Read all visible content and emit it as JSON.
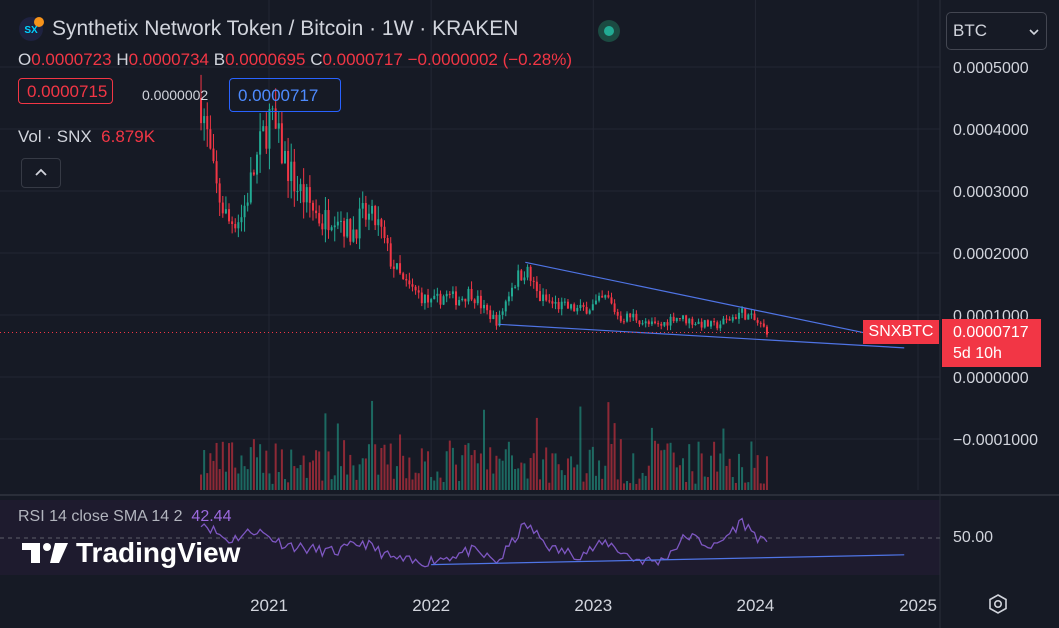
{
  "header": {
    "title": "Synthetix Network Token / Bitcoin · 1W · KRAKEN",
    "ohlc": {
      "o_label": "O",
      "o": "0.0000723",
      "h_label": "H",
      "h": "0.0000734",
      "b_label": "B",
      "b": "0.0000695",
      "c_label": "C",
      "c": "0.0000717",
      "change": "−0.0000002 (−0.28%)"
    },
    "bid": "0.0000715",
    "spread": "0.0000002",
    "ask": "0.0000717",
    "volume_label": "Vol · SNX",
    "volume_value": "6.879K"
  },
  "currency_select": {
    "value": "BTC"
  },
  "price_tag": {
    "symbol": "SNXBTC",
    "price": "0.0000717",
    "countdown": "5d 10h"
  },
  "rsi": {
    "label": "RSI 14 close SMA 14 2",
    "value": "42.44",
    "axis_label": "50.00"
  },
  "brand": "TradingView",
  "colors": {
    "up": "#22ab94",
    "down": "#f23645",
    "trend": "#4f74e5",
    "rsi": "#7e57c2",
    "accent": "#2962ff"
  },
  "chart_data": {
    "type": "candlestick",
    "title": "Synthetix Network Token / Bitcoin · 1W · KRAKEN",
    "x_ticks": [
      "2021",
      "2022",
      "2023",
      "2024",
      "2025"
    ],
    "y_ticks": [
      "0.0005000",
      "0.0004000",
      "0.0003000",
      "0.0002000",
      "0.0001000",
      "0.0000000",
      "−0.0001000"
    ],
    "ylim": [
      -0.00018,
      0.00053
    ],
    "price_path": [
      [
        "2020-08-01",
        0.00045
      ],
      [
        "2020-09-01",
        0.00031
      ],
      [
        "2020-10-01",
        0.00025
      ],
      [
        "2020-11-01",
        0.00026
      ],
      [
        "2020-12-01",
        0.00034
      ],
      [
        "2021-01-01",
        0.00042
      ],
      [
        "2021-02-01",
        0.00036
      ],
      [
        "2021-03-01",
        0.00031
      ],
      [
        "2021-04-01",
        0.00028
      ],
      [
        "2021-05-01",
        0.00025
      ],
      [
        "2021-06-01",
        0.00027
      ],
      [
        "2021-07-01",
        0.00023
      ],
      [
        "2021-08-01",
        0.00026
      ],
      [
        "2021-09-01",
        0.00025
      ],
      [
        "2021-10-01",
        0.00019
      ],
      [
        "2021-11-01",
        0.00015
      ],
      [
        "2021-12-01",
        0.000135
      ],
      [
        "2022-01-01",
        0.000118
      ],
      [
        "2022-02-01",
        0.000132
      ],
      [
        "2022-03-01",
        0.000125
      ],
      [
        "2022-04-01",
        0.000138
      ],
      [
        "2022-05-01",
        0.000108
      ],
      [
        "2022-06-01",
        8.8e-05
      ],
      [
        "2022-07-01",
        0.000148
      ],
      [
        "2022-08-01",
        0.000175
      ],
      [
        "2022-09-01",
        0.000128
      ],
      [
        "2022-10-01",
        0.000118
      ],
      [
        "2022-11-01",
        0.000112
      ],
      [
        "2022-12-01",
        0.000108
      ],
      [
        "2023-01-01",
        0.000115
      ],
      [
        "2023-02-01",
        0.000128
      ],
      [
        "2023-03-01",
        9.5e-05
      ],
      [
        "2023-04-01",
        9.8e-05
      ],
      [
        "2023-05-01",
        8.5e-05
      ],
      [
        "2023-06-01",
        8.2e-05
      ],
      [
        "2023-07-01",
        9.8e-05
      ],
      [
        "2023-08-01",
        9.2e-05
      ],
      [
        "2023-09-01",
        8.6e-05
      ],
      [
        "2023-10-01",
        8.2e-05
      ],
      [
        "2023-11-01",
        9.2e-05
      ],
      [
        "2023-12-01",
        0.000105
      ],
      [
        "2024-01-01",
        9e-05
      ],
      [
        "2024-02-01",
        7.17e-05
      ]
    ],
    "trend_upper": [
      [
        "2022-08-01",
        0.000185
      ],
      [
        "2024-10-01",
        6.7e-05
      ]
    ],
    "trend_lower": [
      [
        "2022-06-01",
        8.5e-05
      ],
      [
        "2024-12-01",
        4.7e-05
      ]
    ],
    "last_price": 7.17e-05,
    "rsi_series": [
      [
        "2020-08-01",
        62
      ],
      [
        "2020-10-01",
        48
      ],
      [
        "2020-12-01",
        56
      ],
      [
        "2021-02-01",
        46
      ],
      [
        "2021-04-01",
        42
      ],
      [
        "2021-06-01",
        40
      ],
      [
        "2021-08-01",
        47
      ],
      [
        "2021-10-01",
        36
      ],
      [
        "2021-12-01",
        32
      ],
      [
        "2022-02-01",
        36
      ],
      [
        "2022-04-01",
        41
      ],
      [
        "2022-06-01",
        33
      ],
      [
        "2022-08-01",
        60
      ],
      [
        "2022-10-01",
        42
      ],
      [
        "2022-12-01",
        38
      ],
      [
        "2023-02-01",
        47
      ],
      [
        "2023-04-01",
        35
      ],
      [
        "2023-06-01",
        33
      ],
      [
        "2023-08-01",
        52
      ],
      [
        "2023-10-01",
        43
      ],
      [
        "2023-12-01",
        62
      ],
      [
        "2024-01-15",
        48
      ],
      [
        "2024-02-01",
        42.44
      ]
    ],
    "rsi_trend": [
      [
        "2022-01-01",
        31
      ],
      [
        "2024-12-01",
        38
      ]
    ],
    "rsi_level": 50
  }
}
